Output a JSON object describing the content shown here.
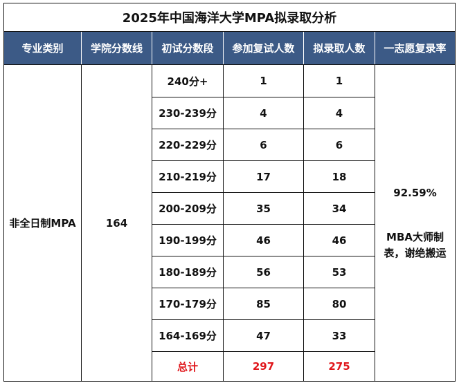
{
  "title": "2025年中国海洋大学MPA拟录取分析",
  "headers": [
    "专业类别",
    "学院分数线",
    "初试分数段",
    "参加复试人数",
    "拟录取人数",
    "一志愿复录率"
  ],
  "category": "非全日制MPA",
  "college_line": "164",
  "rows": [
    {
      "range": "240分+",
      "retest": "1",
      "admitted": "1"
    },
    {
      "range": "230-239分",
      "retest": "4",
      "admitted": "4"
    },
    {
      "range": "220-229分",
      "retest": "6",
      "admitted": "6"
    },
    {
      "range": "210-219分",
      "retest": "17",
      "admitted": "18"
    },
    {
      "range": "200-209分",
      "retest": "35",
      "admitted": "34"
    },
    {
      "range": "190-199分",
      "retest": "46",
      "admitted": "46"
    },
    {
      "range": "180-189分",
      "retest": "56",
      "admitted": "53"
    },
    {
      "range": "170-179分",
      "retest": "85",
      "admitted": "80"
    },
    {
      "range": "164-169分",
      "retest": "47",
      "admitted": "33"
    }
  ],
  "total": {
    "label": "总计",
    "retest": "297",
    "admitted": "275"
  },
  "rate": "92.59%",
  "note_line1": "MBA大师制",
  "note_line2": "表，谢绝搬运",
  "colors": {
    "header_bg": "#3c5a86",
    "total_text": "#e0161b"
  }
}
